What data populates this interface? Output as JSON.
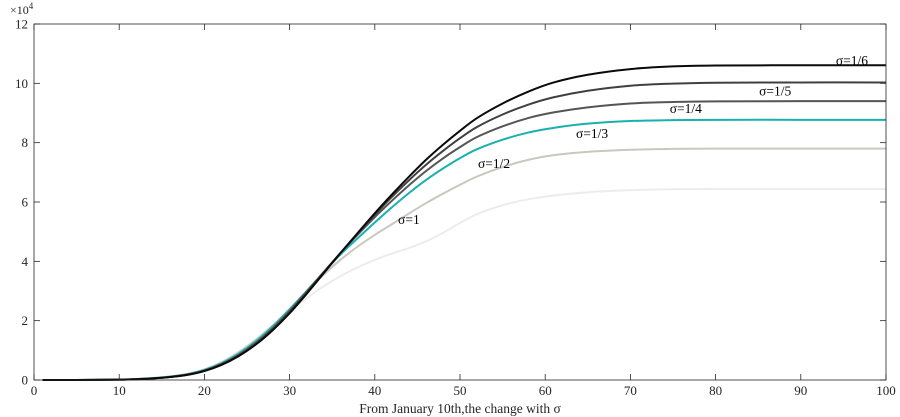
{
  "chart_data": {
    "type": "line",
    "title": "",
    "xlabel": "From January 10th,the change with σ",
    "ylabel": "",
    "xlim": [
      0,
      100
    ],
    "ylim": [
      0,
      120000
    ],
    "x_ticks": [
      0,
      10,
      20,
      30,
      40,
      50,
      60,
      70,
      80,
      90,
      100
    ],
    "x_tick_labels": [
      "0",
      "10",
      "20",
      "30",
      "40",
      "50",
      "60",
      "70",
      "80",
      "90",
      "100"
    ],
    "y_ticks": [
      0,
      20000,
      40000,
      60000,
      80000,
      100000,
      120000
    ],
    "y_tick_labels": [
      "0",
      "2",
      "4",
      "6",
      "8",
      "10",
      "12"
    ],
    "y_multiplier": {
      "base": "×10",
      "exponent": "4"
    },
    "grid": false,
    "legend": "inline labels",
    "x": [
      1,
      5,
      10,
      12,
      14,
      16,
      18,
      20,
      22,
      24,
      26,
      28,
      30,
      32,
      34,
      36,
      38,
      40,
      42,
      44,
      46,
      48,
      50,
      52,
      55,
      58,
      61,
      65,
      70,
      75,
      80,
      90,
      100
    ],
    "series": [
      {
        "name": "σ=1",
        "color": "#ececec",
        "values": [
          0,
          0,
          150,
          340,
          680,
          1230,
          2100,
          3670,
          6140,
          9580,
          13770,
          18430,
          23180,
          27630,
          31630,
          35050,
          37980,
          40490,
          42620,
          44490,
          46700,
          49600,
          52900,
          55900,
          58900,
          60900,
          62200,
          63300,
          64000,
          64300,
          64400,
          64400,
          64400
        ]
      },
      {
        "name": "σ=1/2",
        "color": "#c8c8c0",
        "values": [
          0,
          0,
          140,
          320,
          650,
          1180,
          2020,
          3520,
          5890,
          9220,
          13370,
          18340,
          23960,
          29860,
          35500,
          40600,
          45000,
          48900,
          52500,
          56100,
          59600,
          62800,
          65800,
          68600,
          71800,
          74200,
          75800,
          76900,
          77600,
          77900,
          78000,
          78000,
          78000
        ]
      },
      {
        "name": "σ=1/3",
        "color": "#1ab0b0",
        "values": [
          0,
          0,
          130,
          300,
          620,
          1130,
          1940,
          3370,
          5640,
          8850,
          12950,
          17980,
          23790,
          30000,
          36300,
          42400,
          47800,
          53100,
          58200,
          63000,
          67400,
          71300,
          74800,
          77800,
          81000,
          83400,
          85000,
          86400,
          87300,
          87600,
          87700,
          87700,
          87700
        ]
      },
      {
        "name": "σ=1/4",
        "color": "#555555",
        "values": [
          0,
          0,
          120,
          280,
          580,
          1070,
          1840,
          3200,
          5370,
          8450,
          12450,
          17420,
          23290,
          29750,
          36400,
          42900,
          49000,
          54900,
          60400,
          65600,
          70400,
          74700,
          78500,
          81900,
          85500,
          88300,
          90200,
          91900,
          93200,
          93700,
          93900,
          94000,
          94000
        ]
      },
      {
        "name": "σ=1/5",
        "color": "#404040",
        "values": [
          0,
          0,
          115,
          270,
          560,
          1030,
          1780,
          3100,
          5210,
          8200,
          12120,
          17020,
          22830,
          29330,
          36200,
          42900,
          49400,
          55700,
          61700,
          67300,
          72500,
          77200,
          81500,
          85300,
          89500,
          92800,
          95300,
          97500,
          99200,
          99900,
          100200,
          100300,
          100300
        ]
      },
      {
        "name": "σ=1/6",
        "color": "#0a0a0a",
        "values": [
          0,
          0,
          110,
          260,
          540,
          1000,
          1730,
          3020,
          5090,
          8020,
          11880,
          16740,
          22500,
          29050,
          36000,
          42900,
          49600,
          56200,
          62500,
          68500,
          74200,
          79300,
          84000,
          88300,
          93200,
          97200,
          100300,
          102900,
          104800,
          105700,
          106000,
          106100,
          106100
        ]
      }
    ]
  },
  "labels": [
    {
      "series": "σ=1",
      "x": 44,
      "y": 54000
    },
    {
      "series": "σ=1/2",
      "x": 54,
      "y": 72800
    },
    {
      "series": "σ=1/3",
      "x": 65.5,
      "y": 83000
    },
    {
      "series": "σ=1/4",
      "x": 76.5,
      "y": 91300
    },
    {
      "series": "σ=1/5",
      "x": 87,
      "y": 97200
    },
    {
      "series": "σ=1/6",
      "x": 96,
      "y": 107600
    }
  ]
}
